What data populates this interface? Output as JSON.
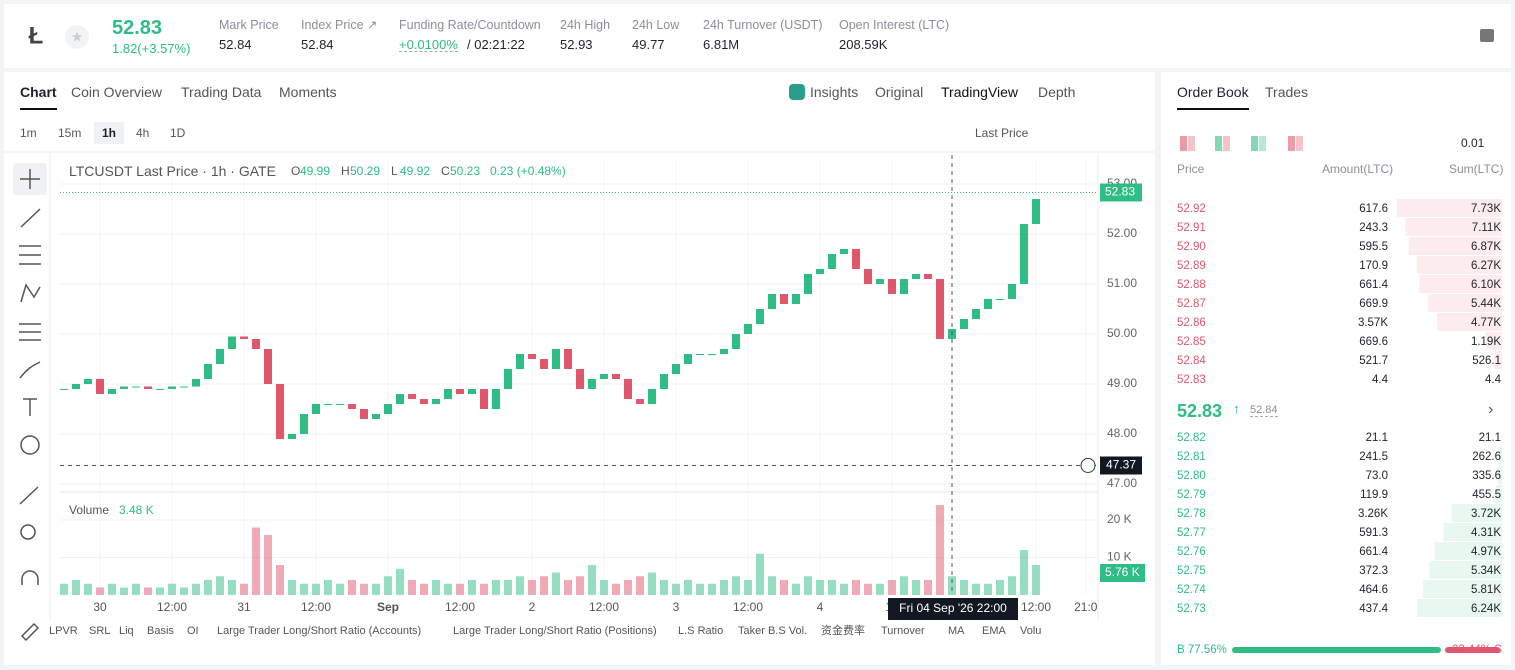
{
  "header": {
    "price": "52.83",
    "change": "1.82(+3.57%)",
    "stats": [
      {
        "label": "Mark Price",
        "value": "52.84"
      },
      {
        "label": "Index Price ↗",
        "value": "52.84"
      },
      {
        "label": "Funding Rate/Countdown",
        "value": "+0.0100%",
        "extra": "/ 02:21:22"
      },
      {
        "label": "24h High",
        "value": "52.93"
      },
      {
        "label": "24h Low",
        "value": "49.77"
      },
      {
        "label": "24h Turnover (USDT)",
        "value": "6.81M"
      },
      {
        "label": "Open Interest (LTC)",
        "value": "208.59K"
      }
    ]
  },
  "chart_panel": {
    "tabs": [
      "Chart",
      "Coin Overview",
      "Trading Data",
      "Moments"
    ],
    "right_tabs": [
      "Insights",
      "Original",
      "TradingView",
      "Depth"
    ],
    "intervals": [
      "1m",
      "15m",
      "1h",
      "4h",
      "1D"
    ],
    "price_type": "Last Price",
    "legend": {
      "title": "LTCUSDT Last Price · 1h · GATE",
      "items": [
        [
          "O",
          "49.99"
        ],
        [
          "H",
          "50.29"
        ],
        [
          "L",
          "49.92"
        ],
        [
          "C",
          "50.23"
        ]
      ],
      "change": "0.23 (+0.48%)"
    },
    "volume_title": "Volume",
    "volume_value": "3.48 K",
    "volume_current": "5.76 K",
    "crosshair": "Fri 04 Sep '26  22:00",
    "last_price": "52.83",
    "low_marker": "47.37",
    "indicators": [
      "LPVR",
      "SRL",
      "Liq",
      "Basis",
      "OI",
      "Large Trader Long/Short Ratio (Accounts)",
      "Large Trader Long/Short Ratio (Positions)",
      "L.S Ratio",
      "Taker B.S Vol.",
      "资金费率",
      "Turnover",
      "MA",
      "EMA",
      "Volu"
    ]
  },
  "chart_data": {
    "type": "candlestick",
    "up_color": "#2ebd85",
    "down_color": "#e0566b",
    "x": [
      -6,
      -4,
      -2,
      0,
      2,
      4,
      6,
      8,
      10,
      12,
      14,
      16,
      18,
      20,
      22,
      24,
      26,
      28,
      30,
      32,
      34,
      36,
      38,
      40,
      42,
      44,
      46,
      48,
      50,
      52,
      54,
      56,
      58,
      60,
      62,
      64,
      66,
      68,
      70,
      72,
      74,
      76,
      78,
      80,
      82,
      84,
      86,
      88,
      90,
      92,
      94,
      96,
      98,
      100,
      102,
      104,
      106,
      108,
      110,
      112,
      114,
      116,
      118,
      120,
      122,
      124,
      126,
      128,
      130,
      132,
      134,
      136,
      138,
      140,
      142,
      144,
      146,
      148,
      150,
      152,
      154,
      156
    ],
    "close": [
      48.9,
      49.0,
      49.1,
      48.8,
      48.9,
      48.95,
      48.95,
      48.9,
      48.9,
      48.95,
      48.95,
      49.1,
      49.4,
      49.7,
      49.95,
      49.9,
      49.7,
      49.0,
      47.9,
      48.0,
      48.4,
      48.6,
      48.6,
      48.6,
      48.5,
      48.3,
      48.4,
      48.6,
      48.8,
      48.7,
      48.6,
      48.7,
      48.9,
      48.8,
      48.9,
      48.5,
      48.9,
      49.3,
      49.6,
      49.5,
      49.3,
      49.7,
      49.3,
      48.9,
      49.1,
      49.2,
      49.1,
      48.7,
      48.6,
      48.9,
      49.2,
      49.4,
      49.6,
      49.6,
      49.6,
      49.7,
      50.0,
      50.2,
      50.5,
      50.8,
      50.6,
      50.8,
      51.2,
      51.3,
      51.6,
      51.7,
      51.3,
      51.0,
      51.1,
      50.8,
      51.1,
      51.2,
      51.1,
      49.9,
      50.1,
      50.3,
      50.5,
      50.7,
      50.7,
      51.0,
      52.2,
      52.7
    ],
    "volume": [
      3,
      4,
      3,
      2,
      3,
      2,
      3,
      2,
      2,
      3,
      2,
      3,
      4,
      5,
      4,
      3,
      18,
      16,
      8,
      4,
      3,
      3,
      4,
      3,
      4,
      3,
      3,
      5,
      7,
      4,
      3,
      4,
      3,
      3,
      4,
      3,
      4,
      4,
      5,
      4,
      5,
      6,
      4,
      5,
      8,
      4,
      3,
      4,
      5,
      6,
      4,
      3,
      4,
      3,
      3,
      4,
      5,
      4,
      11,
      5,
      4,
      3,
      5,
      4,
      4,
      3,
      4,
      3,
      3,
      4,
      5,
      4,
      4,
      24,
      5,
      4,
      3,
      3,
      4,
      5,
      12,
      8
    ],
    "xlim": [
      -6.667,
      166.333
    ],
    "xticks": [
      {
        "value": 0,
        "label": "30"
      },
      {
        "value": 12,
        "label": "12:00"
      },
      {
        "value": 24,
        "label": "31"
      },
      {
        "value": 36,
        "label": "12:00"
      },
      {
        "value": 48,
        "label": "Sep"
      },
      {
        "value": 60,
        "label": "12:00"
      },
      {
        "value": 72,
        "label": "2"
      },
      {
        "value": 84,
        "label": "12:00"
      },
      {
        "value": 96,
        "label": "3"
      },
      {
        "value": 108,
        "label": "12:00"
      },
      {
        "value": 120,
        "label": "4"
      },
      {
        "value": 132,
        "label": "12"
      },
      {
        "value": 156,
        "label": "12:00"
      },
      {
        "value": 164.3,
        "label": "21:0"
      }
    ],
    "ylim": [
      46.84,
      53.48
    ],
    "yticks": [
      {
        "value": 47,
        "label": "47.00"
      },
      {
        "value": 48,
        "label": "48.00"
      },
      {
        "value": 49,
        "label": "49.00"
      },
      {
        "value": 50,
        "label": "50.00"
      },
      {
        "value": 51,
        "label": "51.00"
      },
      {
        "value": 52,
        "label": "52.00"
      },
      {
        "value": 53,
        "label": "53.00"
      }
    ],
    "y2lim": [
      0,
      26.67
    ],
    "y2ticks": [
      {
        "value": 10,
        "label": "10 K"
      },
      {
        "value": 20,
        "label": "20 K"
      }
    ],
    "last": 52.83,
    "low": 47.37,
    "cross_x": 142
  },
  "order_book": {
    "tabs": [
      "Order Book",
      "Trades"
    ],
    "precision": "0.01",
    "headers": [
      "Price",
      "Amount(LTC)",
      "Sum(LTC)"
    ],
    "asks": [
      [
        "52.92",
        "617.6",
        {
          "value": 7730,
          "label": "7.73K"
        }
      ],
      [
        "52.91",
        "243.3",
        {
          "value": 7110,
          "label": "7.11K"
        }
      ],
      [
        "52.90",
        "595.5",
        {
          "value": 6870,
          "label": "6.87K"
        }
      ],
      [
        "52.89",
        "170.9",
        {
          "value": 6270,
          "label": "6.27K"
        }
      ],
      [
        "52.88",
        "661.4",
        {
          "value": 6100,
          "label": "6.10K"
        }
      ],
      [
        "52.87",
        "669.9",
        {
          "value": 5440,
          "label": "5.44K"
        }
      ],
      [
        "52.86",
        "3.57K",
        {
          "value": 4770,
          "label": "4.77K"
        }
      ],
      [
        "52.85",
        "669.6",
        {
          "value": 1190,
          "label": "1.19K"
        }
      ],
      [
        "52.84",
        "521.7",
        526.1
      ],
      [
        "52.83",
        "4.4",
        4.4
      ]
    ],
    "mid": "52.83",
    "mark": "52.84",
    "bids": [
      [
        "52.82",
        "21.1",
        21.1
      ],
      [
        "52.81",
        "241.5",
        262.6
      ],
      [
        "52.80",
        "73.0",
        335.6
      ],
      [
        "52.79",
        "119.9",
        455.5
      ],
      [
        "52.78",
        "3.26K",
        {
          "value": 3720,
          "label": "3.72K"
        }
      ],
      [
        "52.77",
        "591.3",
        {
          "value": 4310,
          "label": "4.31K"
        }
      ],
      [
        "52.76",
        "661.4",
        {
          "value": 4970,
          "label": "4.97K"
        }
      ],
      [
        "52.75",
        "372.3",
        {
          "value": 5340,
          "label": "5.34K"
        }
      ],
      [
        "52.74",
        "464.6",
        {
          "value": 5810,
          "label": "5.81K"
        }
      ],
      [
        "52.73",
        "437.4",
        {
          "value": 6240,
          "label": "6.24K"
        }
      ]
    ],
    "buy": {
      "value": 77.56,
      "label": "B 77.56%"
    },
    "sell": {
      "value": 22.44,
      "label": "22.44% S"
    }
  }
}
